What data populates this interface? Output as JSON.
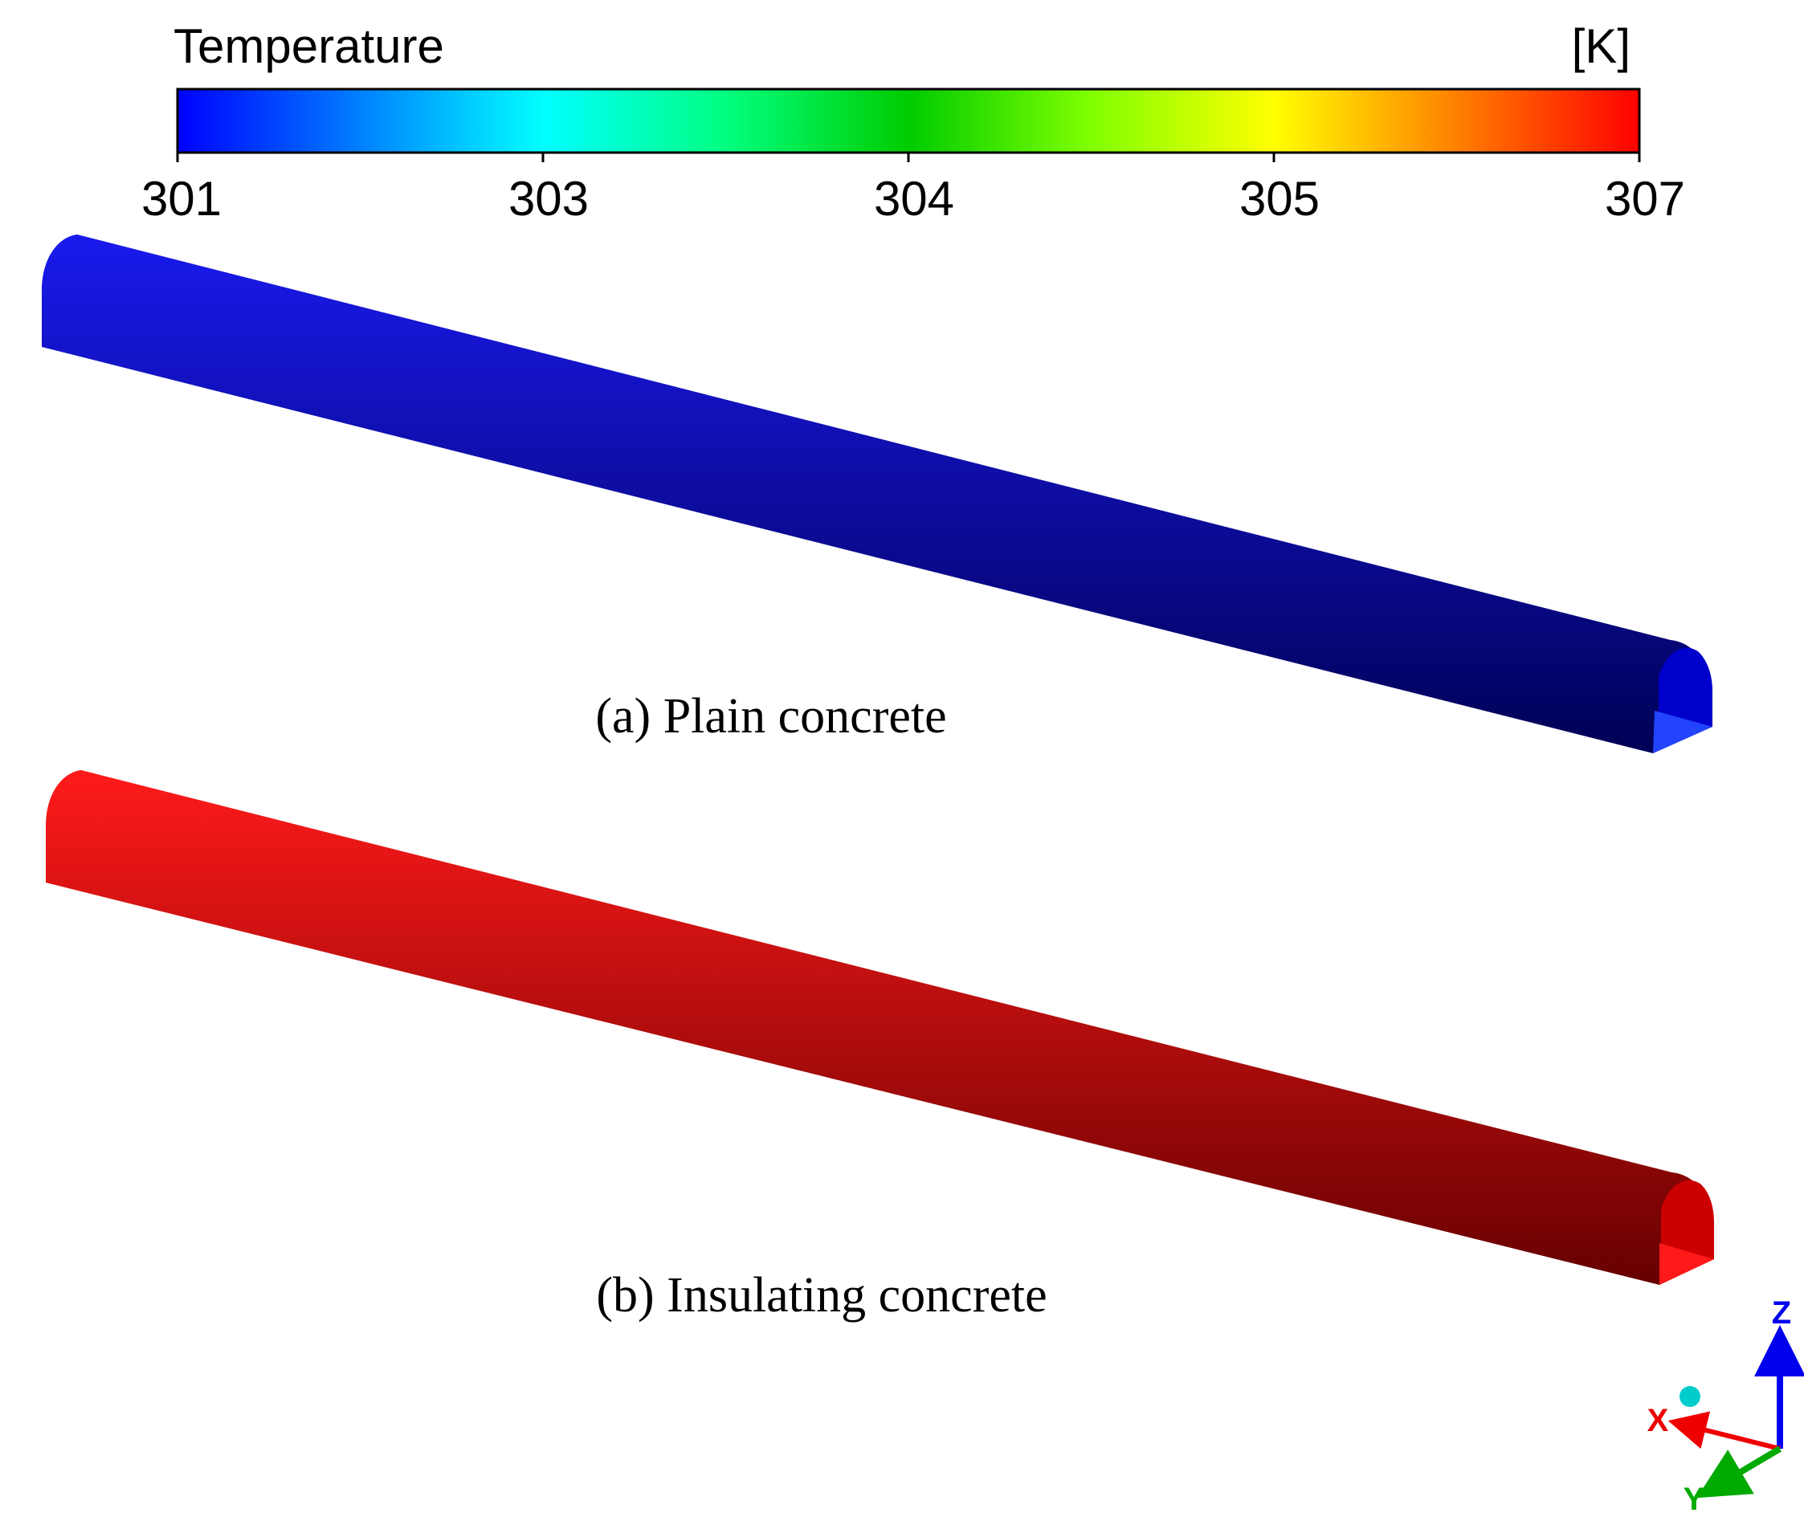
{
  "legend": {
    "title": "Temperature",
    "unit": "[K]",
    "range": [
      301,
      307
    ],
    "ticks": [
      "301",
      "303",
      "304",
      "305",
      "307"
    ],
    "colors": [
      "#0000ff",
      "#0080ff",
      "#00ffff",
      "#00ff80",
      "#00cc00",
      "#80ff00",
      "#ffff00",
      "#ff8000",
      "#ff0000"
    ]
  },
  "tunnels": [
    {
      "caption": "(a) Plain concrete",
      "value_K": 301,
      "colors": {
        "top": "#1a1aee",
        "bottom": "#000055",
        "end_wall": "#0000cc",
        "end_floor": "#2244ff"
      }
    },
    {
      "caption": "(b) Insulating concrete",
      "value_K": 307,
      "colors": {
        "top": "#ff1a1a",
        "bottom": "#660000",
        "end_wall": "#cc0000",
        "end_floor": "#ff1a1a"
      }
    }
  ],
  "axes_triad": {
    "labels": {
      "x": "X",
      "y": "Y",
      "z": "Z"
    },
    "colors": {
      "x": "#ee0000",
      "y": "#00aa00",
      "z": "#0000ee",
      "origin": "#00cccc"
    }
  }
}
